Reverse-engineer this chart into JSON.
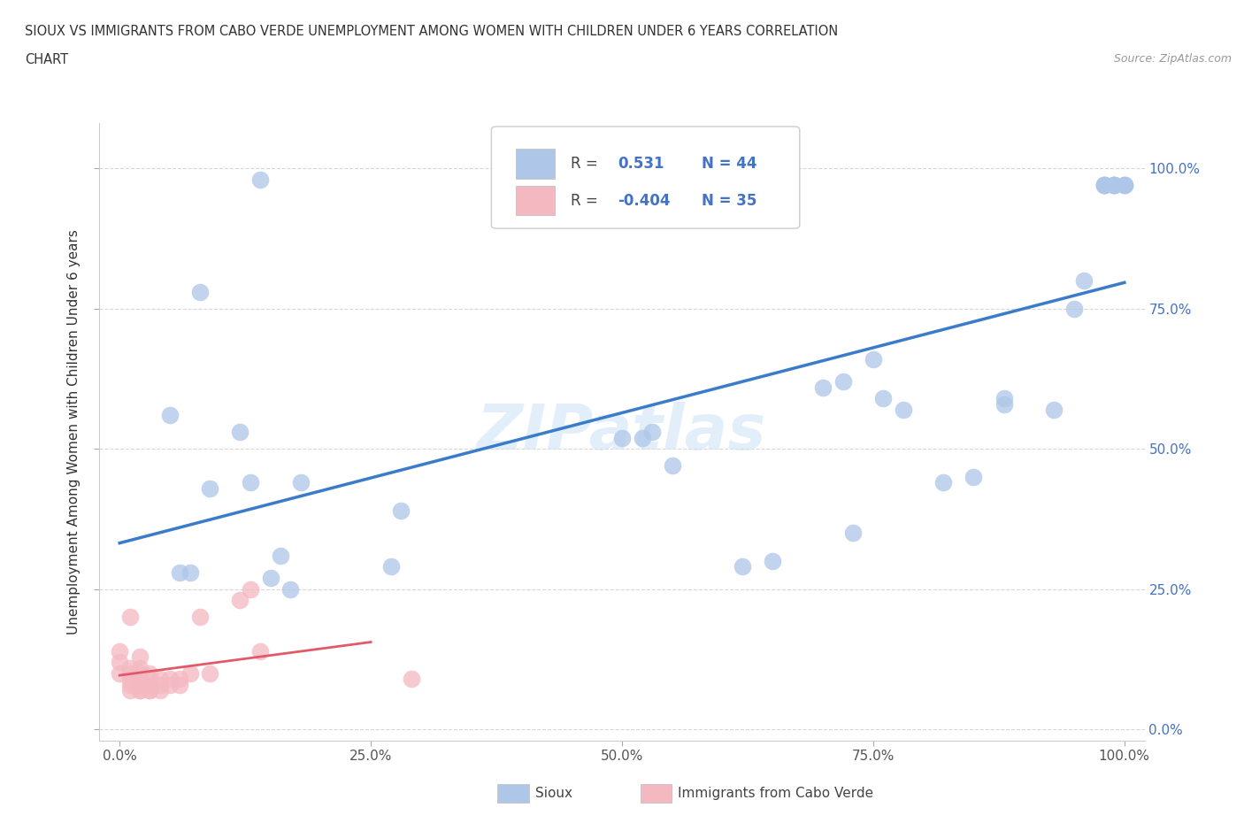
{
  "title_line1": "SIOUX VS IMMIGRANTS FROM CABO VERDE UNEMPLOYMENT AMONG WOMEN WITH CHILDREN UNDER 6 YEARS CORRELATION",
  "title_line2": "CHART",
  "source": "Source: ZipAtlas.com",
  "ylabel": "Unemployment Among Women with Children Under 6 years",
  "xlim": [
    -0.02,
    1.02
  ],
  "ylim": [
    -0.02,
    1.08
  ],
  "x_ticks": [
    0.0,
    0.25,
    0.5,
    0.75,
    1.0
  ],
  "x_tick_labels": [
    "0.0%",
    "25.0%",
    "50.0%",
    "75.0%",
    "100.0%"
  ],
  "y_ticks": [
    0.0,
    0.25,
    0.5,
    0.75,
    1.0
  ],
  "y_tick_labels": [
    "0.0%",
    "25.0%",
    "50.0%",
    "75.0%",
    "100.0%"
  ],
  "sioux_color": "#aec6e8",
  "cabo_verde_color": "#f4b8c1",
  "sioux_R": 0.531,
  "sioux_N": 44,
  "cabo_verde_R": -0.404,
  "cabo_verde_N": 35,
  "sioux_line_color": "#3a7cc9",
  "cabo_verde_line_color": "#e05a6a",
  "watermark": "ZIPatlas",
  "legend_label_sioux": "Sioux",
  "legend_label_cabo": "Immigrants from Cabo Verde",
  "sioux_x": [
    0.14,
    0.08,
    0.05,
    0.06,
    0.07,
    0.09,
    0.12,
    0.13,
    0.15,
    0.16,
    0.17,
    0.18,
    0.27,
    0.28,
    0.5,
    0.52,
    0.53,
    0.55,
    0.62,
    0.65,
    0.7,
    0.72,
    0.73,
    0.75,
    0.76,
    0.78,
    0.82,
    0.85,
    0.88,
    0.88,
    0.93,
    0.95,
    0.96,
    0.98,
    0.98,
    0.98,
    0.98,
    0.99,
    0.99,
    0.99,
    0.99,
    1.0,
    1.0,
    1.0
  ],
  "sioux_y": [
    0.98,
    0.78,
    0.56,
    0.28,
    0.28,
    0.43,
    0.53,
    0.44,
    0.27,
    0.31,
    0.25,
    0.44,
    0.29,
    0.39,
    0.52,
    0.52,
    0.53,
    0.47,
    0.29,
    0.3,
    0.61,
    0.62,
    0.35,
    0.66,
    0.59,
    0.57,
    0.44,
    0.45,
    0.58,
    0.59,
    0.57,
    0.75,
    0.8,
    0.97,
    0.97,
    0.97,
    0.97,
    0.97,
    0.97,
    0.97,
    0.97,
    0.97,
    0.97,
    0.97
  ],
  "cabo_x": [
    0.0,
    0.0,
    0.0,
    0.01,
    0.01,
    0.01,
    0.01,
    0.01,
    0.01,
    0.02,
    0.02,
    0.02,
    0.02,
    0.02,
    0.02,
    0.02,
    0.03,
    0.03,
    0.03,
    0.03,
    0.03,
    0.04,
    0.04,
    0.04,
    0.05,
    0.05,
    0.06,
    0.06,
    0.07,
    0.08,
    0.09,
    0.12,
    0.13,
    0.14,
    0.29
  ],
  "cabo_y": [
    0.1,
    0.12,
    0.14,
    0.07,
    0.08,
    0.09,
    0.1,
    0.11,
    0.2,
    0.07,
    0.07,
    0.08,
    0.09,
    0.1,
    0.11,
    0.13,
    0.07,
    0.07,
    0.08,
    0.09,
    0.1,
    0.07,
    0.08,
    0.09,
    0.08,
    0.09,
    0.08,
    0.09,
    0.1,
    0.2,
    0.1,
    0.23,
    0.25,
    0.14,
    0.09
  ]
}
